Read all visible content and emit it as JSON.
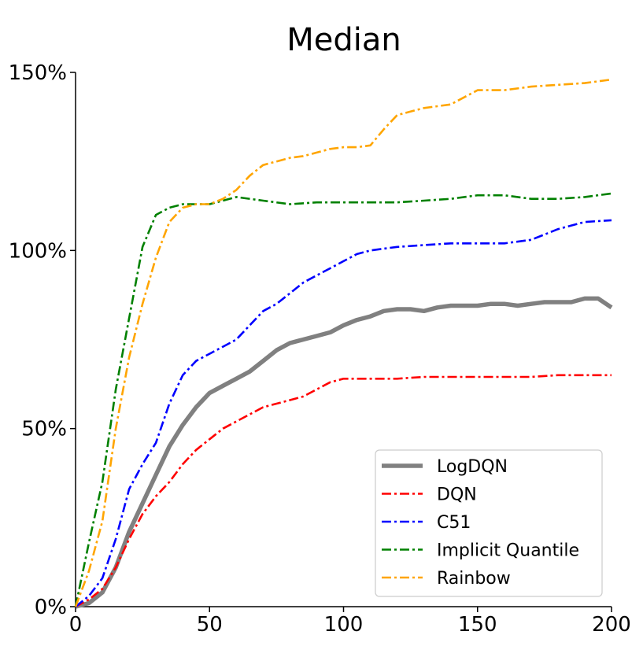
{
  "chart_data": {
    "type": "line",
    "title": "Median",
    "xlabel": "",
    "ylabel": "",
    "xlim": [
      0,
      200
    ],
    "ylim": [
      0,
      150
    ],
    "xticks": [
      0,
      50,
      100,
      150,
      200
    ],
    "xtick_labels": [
      "0",
      "50",
      "100",
      "150",
      "200"
    ],
    "yticks": [
      0,
      50,
      100,
      150
    ],
    "ytick_labels": [
      "0%",
      "50%",
      "100%",
      "150%"
    ],
    "grid": false,
    "legend_position": "bottom-right",
    "series": [
      {
        "name": "LogDQN",
        "color": "#808080",
        "style": "solid",
        "x": [
          0,
          5,
          10,
          15,
          20,
          25,
          30,
          35,
          40,
          45,
          50,
          55,
          60,
          65,
          70,
          75,
          80,
          85,
          90,
          95,
          100,
          105,
          110,
          115,
          120,
          125,
          130,
          135,
          140,
          145,
          150,
          155,
          160,
          165,
          170,
          175,
          180,
          185,
          190,
          195,
          200
        ],
        "y": [
          0,
          1,
          4,
          11,
          21,
          29,
          37,
          45,
          51,
          56,
          60,
          62,
          64,
          66,
          69,
          72,
          74,
          75,
          76,
          77,
          79,
          80.5,
          81.5,
          83,
          83.5,
          83.5,
          83,
          84,
          84.5,
          84.5,
          84.5,
          85,
          85,
          84.5,
          85,
          85.5,
          85.5,
          85.5,
          86.5,
          86.5,
          84
        ]
      },
      {
        "name": "DQN",
        "color": "#ff0000",
        "style": "dashdot",
        "x": [
          0,
          5,
          10,
          15,
          20,
          25,
          30,
          35,
          40,
          45,
          50,
          55,
          60,
          65,
          70,
          75,
          80,
          85,
          90,
          95,
          100,
          110,
          120,
          130,
          140,
          150,
          160,
          170,
          180,
          190,
          200
        ],
        "y": [
          0,
          2,
          5,
          11,
          19,
          26,
          31,
          35,
          40,
          44,
          47,
          50,
          52,
          54,
          56,
          57,
          58,
          59,
          61,
          63,
          64,
          64,
          64,
          64.5,
          64.5,
          64.5,
          64.5,
          64.5,
          65,
          65,
          65
        ]
      },
      {
        "name": "C51",
        "color": "#0000ff",
        "style": "dashdot",
        "x": [
          0,
          5,
          10,
          15,
          20,
          25,
          30,
          35,
          40,
          45,
          50,
          55,
          60,
          65,
          70,
          75,
          80,
          85,
          90,
          95,
          100,
          105,
          110,
          120,
          130,
          140,
          150,
          160,
          170,
          180,
          190,
          200
        ],
        "y": [
          0,
          3,
          8,
          19,
          33,
          40,
          46,
          57,
          65,
          69,
          71,
          73,
          75,
          79,
          83,
          85,
          88,
          91,
          93,
          95,
          97,
          99,
          100,
          101,
          101.5,
          102,
          102,
          102,
          103,
          106,
          108,
          108.5
        ]
      },
      {
        "name": "Implicit Quantile",
        "color": "#008000",
        "style": "dashdot",
        "x": [
          0,
          5,
          10,
          15,
          20,
          25,
          30,
          35,
          40,
          50,
          60,
          70,
          80,
          90,
          100,
          110,
          120,
          130,
          140,
          150,
          160,
          170,
          180,
          190,
          200
        ],
        "y": [
          0,
          18,
          35,
          61,
          81,
          101,
          110,
          112,
          113,
          113,
          115,
          114,
          113,
          113.5,
          113.5,
          113.5,
          113.5,
          114,
          114.5,
          115.5,
          115.5,
          114.5,
          114.5,
          115,
          116
        ]
      },
      {
        "name": "Rainbow",
        "color": "#ffa500",
        "style": "dashdot",
        "x": [
          0,
          5,
          10,
          15,
          20,
          25,
          30,
          35,
          40,
          45,
          50,
          55,
          60,
          65,
          70,
          75,
          80,
          85,
          90,
          95,
          100,
          105,
          110,
          115,
          120,
          125,
          130,
          135,
          140,
          145,
          150,
          155,
          160,
          170,
          180,
          190,
          200
        ],
        "y": [
          0,
          10,
          24,
          50,
          70,
          85,
          98,
          108,
          112,
          113,
          113,
          114.5,
          117,
          121,
          124,
          125,
          126,
          126.5,
          127.5,
          128.5,
          129,
          129,
          129.5,
          134,
          138,
          139,
          140,
          140.5,
          141,
          143,
          145,
          145,
          145,
          146,
          146.5,
          147,
          148
        ]
      }
    ]
  }
}
